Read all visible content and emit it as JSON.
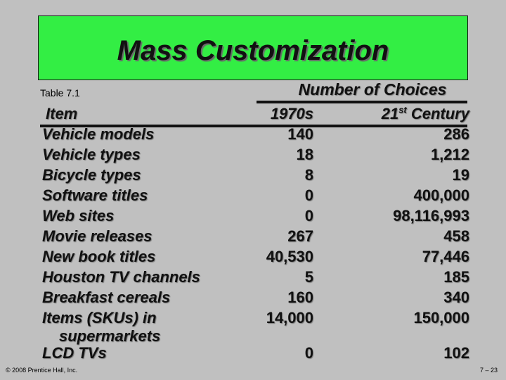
{
  "slide": {
    "title": "Mass Customization",
    "table_label": "Table 7.1",
    "choices_header": "Number of Choices",
    "col_item": "Item",
    "col_1970s": "1970s",
    "col_21_base": "21",
    "col_21_sup": "st",
    "col_21_rest": " Century"
  },
  "rows": [
    {
      "item": "Vehicle models",
      "v1970s": "140",
      "v21": "286"
    },
    {
      "item": "Vehicle types",
      "v1970s": "18",
      "v21": "1,212"
    },
    {
      "item": "Bicycle types",
      "v1970s": "8",
      "v21": "19"
    },
    {
      "item": "Software titles",
      "v1970s": "0",
      "v21": "400,000"
    },
    {
      "item": "Web sites",
      "v1970s": "0",
      "v21": "98,116,993"
    },
    {
      "item": "Movie releases",
      "v1970s": "267",
      "v21": "458"
    },
    {
      "item": "New book titles",
      "v1970s": "40,530",
      "v21": "77,446"
    },
    {
      "item": "Houston TV channels",
      "v1970s": "5",
      "v21": "185"
    },
    {
      "item": "Breakfast cereals",
      "v1970s": "160",
      "v21": "340"
    },
    {
      "item": "Items (SKUs) in",
      "item_line2": "supermarkets",
      "v1970s": "14,000",
      "v21": "150,000"
    },
    {
      "item": "LCD TVs",
      "v1970s": "0",
      "v21": "102"
    }
  ],
  "footer": {
    "copyright": "© 2008 Prentice Hall, Inc.",
    "page": "7 – 23"
  },
  "colors": {
    "background": "#c0c0c0",
    "title_box": "#33ee44"
  }
}
